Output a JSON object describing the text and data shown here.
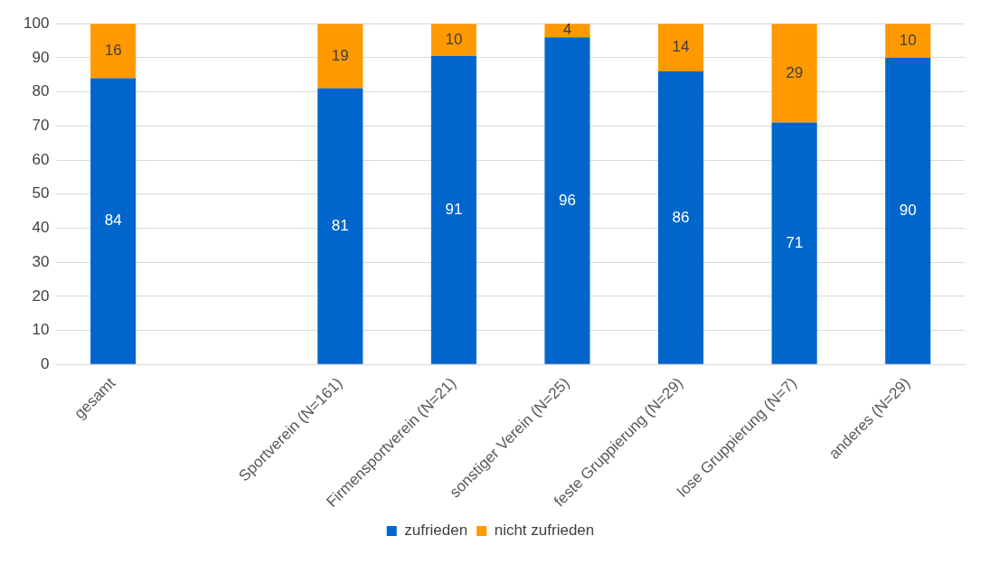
{
  "chart_data": {
    "type": "bar",
    "stacked": true,
    "categories": [
      "gesamt",
      null,
      "Sportverein (N=161)",
      "Firmensportverein (N=21)",
      "sonstiger Verein (N=25)",
      "feste Gruppierung (N=29)",
      "lose Gruppierung (N=7)",
      "anderes (N=29)"
    ],
    "series": [
      {
        "name": "zufrieden",
        "color": "#0066cc",
        "values": [
          84,
          null,
          81,
          90.5,
          96,
          86,
          71,
          90
        ],
        "value_labels": [
          "84",
          null,
          "81",
          "91",
          "96",
          "86",
          "71",
          "90"
        ]
      },
      {
        "name": "nicht zufrieden",
        "color": "#ff9900",
        "values": [
          16,
          null,
          19,
          9.5,
          4,
          14,
          29,
          10
        ],
        "value_labels": [
          "16",
          null,
          "19",
          "10",
          "4",
          "14",
          "29",
          "10"
        ]
      }
    ],
    "ylim": [
      0,
      100
    ],
    "yticks": [
      0,
      10,
      20,
      30,
      40,
      50,
      60,
      70,
      80,
      90,
      100
    ],
    "grid": "y",
    "legend": "bottom"
  }
}
